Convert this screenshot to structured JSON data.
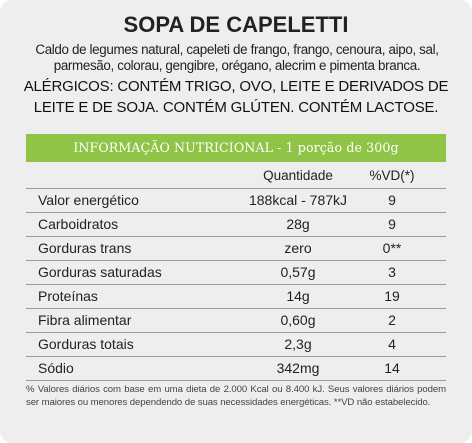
{
  "title": "SOPA DE CAPELETTI",
  "ingredients": "Caldo de legumes natural, capeleti de frango, frango, cenoura, aipo, sal, parmesão, colorau, gengibre, orégano, alecrim e pimenta branca.",
  "allergens": "ALÉRGICOS: CONTÉM TRIGO, OVO, LEITE E DERIVADOS DE LEITE E DE SOJA. CONTÉM GLÚTEN. CONTÉM LACTOSE.",
  "table": {
    "header": "INFORMAÇÃO NUTRICIONAL - 1 porção de 300g",
    "col_quantity": "Quantidade",
    "col_vd": "%VD(*)",
    "rows": [
      {
        "name": "Valor energético",
        "quantity": "188kcal - 787kJ",
        "vd": "9"
      },
      {
        "name": "Carboidratos",
        "quantity": "28g",
        "vd": "9"
      },
      {
        "name": "Gorduras trans",
        "quantity": "zero",
        "vd": "0**"
      },
      {
        "name": "Gorduras saturadas",
        "quantity": "0,57g",
        "vd": "3"
      },
      {
        "name": "Proteínas",
        "quantity": "14g",
        "vd": "19"
      },
      {
        "name": "Fibra alimentar",
        "quantity": "0,60g",
        "vd": "2"
      },
      {
        "name": "Gorduras totais",
        "quantity": "2,3g",
        "vd": "4"
      },
      {
        "name": "Sódio",
        "quantity": "342mg",
        "vd": "14"
      }
    ]
  },
  "footnote": "% Valores diários com base em uma dieta de 2.000 Kcal ou 8.400 kJ. Seus valores diários podem ser maiores ou menores dependendo de suas necessidades energéticas. **VD não estabelecido.",
  "colors": {
    "header_bar": "#8fc447",
    "card_background": "#eeeeee"
  }
}
